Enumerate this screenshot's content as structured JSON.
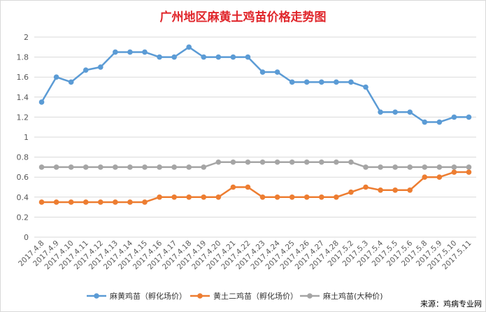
{
  "chart_data": {
    "type": "line",
    "title": "广州地区麻黄土鸡苗价格走势图",
    "xlabel": "",
    "ylabel": "",
    "ylim": [
      0,
      2
    ],
    "yticks": [
      "0",
      "0.2",
      "0.4",
      "0.6",
      "0.8",
      "1",
      "1.2",
      "1.4",
      "1.6",
      "1.8",
      "2"
    ],
    "grid": true,
    "legend_position": "bottom",
    "x": [
      "2017.4.8",
      "2017.4.9",
      "2017.4.10",
      "2017.4.11",
      "2017.4.12",
      "2017.4.13",
      "2017.4.14",
      "2017.4.15",
      "2017.4.16",
      "2017.4.17",
      "2017.4.18",
      "2017.4.19",
      "2017.4.20",
      "2017.4.21",
      "2017.4.22",
      "2017.4.23",
      "2017.4.24",
      "2017.4.25",
      "2017.4.26",
      "2017.4.27",
      "2017.4.28",
      "2017.5.2",
      "2017.5.3",
      "2017.5.4",
      "2017.5.5",
      "2017.5.6",
      "2017.5.8",
      "2017.5.9",
      "2017.5.10",
      "2017.5.11"
    ],
    "series": [
      {
        "name": "麻黄鸡苗（孵化场价）",
        "color": "#5b9bd5",
        "values": [
          1.35,
          1.6,
          1.55,
          1.67,
          1.7,
          1.85,
          1.85,
          1.85,
          1.8,
          1.8,
          1.9,
          1.8,
          1.8,
          1.8,
          1.8,
          1.65,
          1.65,
          1.55,
          1.55,
          1.55,
          1.55,
          1.55,
          1.5,
          1.25,
          1.25,
          1.25,
          1.15,
          1.15,
          1.2,
          1.2
        ]
      },
      {
        "name": "黄土二鸡苗（孵化场价）",
        "color": "#ed7d31",
        "values": [
          0.35,
          0.35,
          0.35,
          0.35,
          0.35,
          0.35,
          0.35,
          0.35,
          0.4,
          0.4,
          0.4,
          0.4,
          0.4,
          0.5,
          0.5,
          0.4,
          0.4,
          0.4,
          0.4,
          0.4,
          0.4,
          0.45,
          0.5,
          0.47,
          0.47,
          0.47,
          0.6,
          0.6,
          0.65,
          0.65
        ]
      },
      {
        "name": "麻土鸡苗(大种价)",
        "color": "#a5a5a5",
        "values": [
          0.7,
          0.7,
          0.7,
          0.7,
          0.7,
          0.7,
          0.7,
          0.7,
          0.7,
          0.7,
          0.7,
          0.7,
          0.75,
          0.75,
          0.75,
          0.75,
          0.75,
          0.75,
          0.75,
          0.75,
          0.75,
          0.75,
          0.7,
          0.7,
          0.7,
          0.7,
          0.7,
          0.7,
          0.7,
          0.7
        ]
      }
    ]
  },
  "source": "来源：鸡病专业网"
}
